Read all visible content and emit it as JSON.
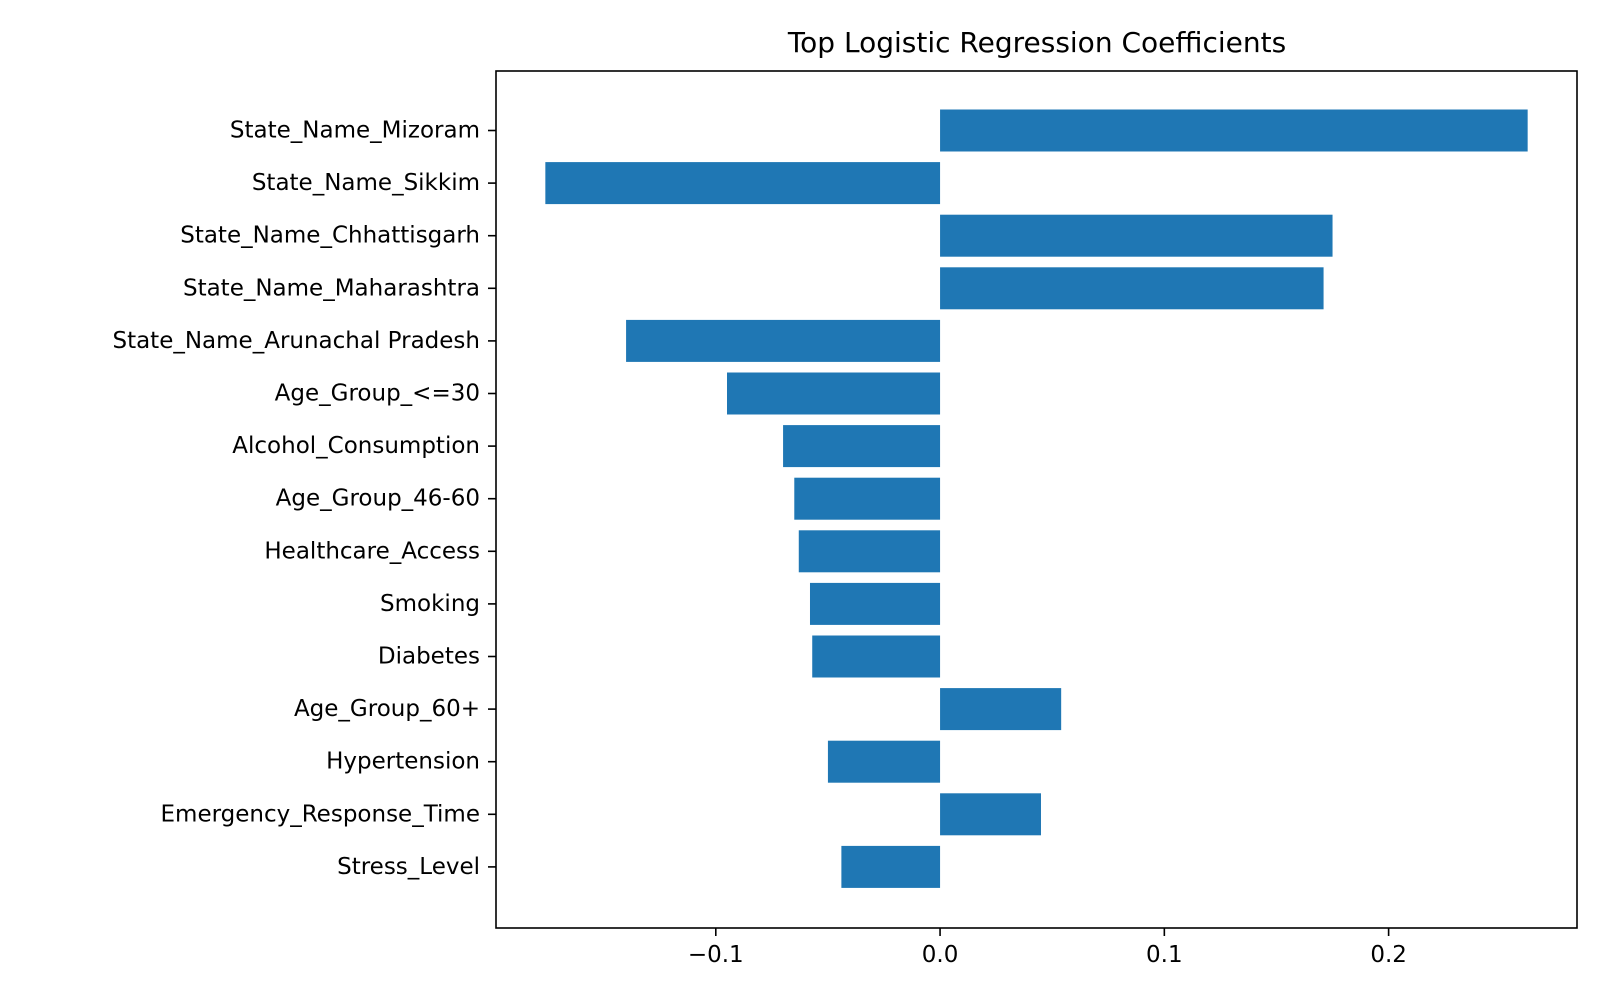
{
  "chart_data": {
    "type": "bar",
    "orientation": "horizontal",
    "title": "Top Logistic Regression Coefficients",
    "xlabel": "",
    "ylabel": "",
    "categories": [
      "State_Name_Mizoram",
      "State_Name_Sikkim",
      "State_Name_Chhattisgarh",
      "State_Name_Maharashtra",
      "State_Name_Arunachal Pradesh",
      "Age_Group_<=30",
      "Alcohol_Consumption",
      "Age_Group_46-60",
      "Healthcare_Access",
      "Smoking",
      "Diabetes",
      "Age_Group_60+",
      "Hypertension",
      "Emergency_Response_Time",
      "Stress_Level"
    ],
    "values": [
      0.262,
      -0.176,
      0.175,
      0.171,
      -0.14,
      -0.095,
      -0.07,
      -0.065,
      -0.063,
      -0.058,
      -0.057,
      0.054,
      -0.05,
      0.045,
      -0.044
    ],
    "xlim": [
      -0.198,
      0.284
    ],
    "x_ticks": [
      -0.1,
      0.0,
      0.1,
      0.2
    ],
    "x_tick_labels": [
      "−0.1",
      "0.0",
      "0.1",
      "0.2"
    ],
    "grid": false,
    "legend": "none",
    "bar_color": "#1f77b4"
  }
}
